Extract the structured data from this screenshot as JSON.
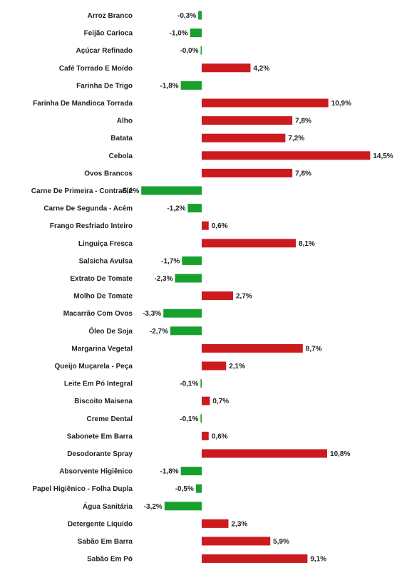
{
  "chart_data": {
    "type": "bar",
    "orientation": "horizontal",
    "categories": [
      "Arroz Branco",
      "Feijão Carioca",
      "Açúcar Refinado",
      "Café Torrado E Moído",
      "Farinha De Trigo",
      "Farinha De Mandioca Torrada",
      "Alho",
      "Batata",
      "Cebola",
      "Ovos Brancos",
      "Carne De Primeira - Contrafilé",
      "Carne De Segunda - Acém",
      "Frango Resfriado Inteiro",
      "Linguiça Fresca",
      "Salsicha Avulsa",
      "Extrato De Tomate",
      "Molho De Tomate",
      "Macarrão Com Ovos",
      "Óleo De Soja",
      "Margarina Vegetal",
      "Queijo Muçarela - Peça",
      "Leite Em Pó Integral",
      "Biscoito Maisena",
      "Creme Dental",
      "Sabonete Em Barra",
      "Desodorante Spray",
      "Absorvente Higiênico",
      "Papel Higiênico - Folha Dupla",
      "Água Sanitária",
      "Detergente Líquido",
      "Sabão Em Barra",
      "Sabão Em Pó"
    ],
    "values": [
      -0.3,
      -1.0,
      -0.0,
      4.2,
      -1.8,
      10.9,
      7.8,
      7.2,
      14.5,
      7.8,
      -5.2,
      -1.2,
      0.6,
      8.1,
      -1.7,
      -2.3,
      2.7,
      -3.3,
      -2.7,
      8.7,
      2.1,
      -0.1,
      0.7,
      -0.1,
      0.6,
      10.8,
      -1.8,
      -0.5,
      -3.2,
      2.3,
      5.9,
      9.1
    ],
    "labels": [
      "-0,3%",
      "-1,0%",
      "-0,0%",
      "4,2%",
      "-1,8%",
      "10,9%",
      "7,8%",
      "7,2%",
      "14,5%",
      "7,8%",
      "-5,2%",
      "-1,2%",
      "0,6%",
      "8,1%",
      "-1,7%",
      "-2,3%",
      "2,7%",
      "-3,3%",
      "-2,7%",
      "8,7%",
      "2,1%",
      "-0,1%",
      "0,7%",
      "-0,1%",
      "0,6%",
      "10,8%",
      "-1,8%",
      "-0,5%",
      "-3,2%",
      "2,3%",
      "5,9%",
      "9,1%"
    ],
    "xlim": [
      -5.2,
      14.5
    ],
    "grid": false,
    "colors": {
      "positive": "#cc1b1f",
      "negative": "#17a02e"
    }
  }
}
